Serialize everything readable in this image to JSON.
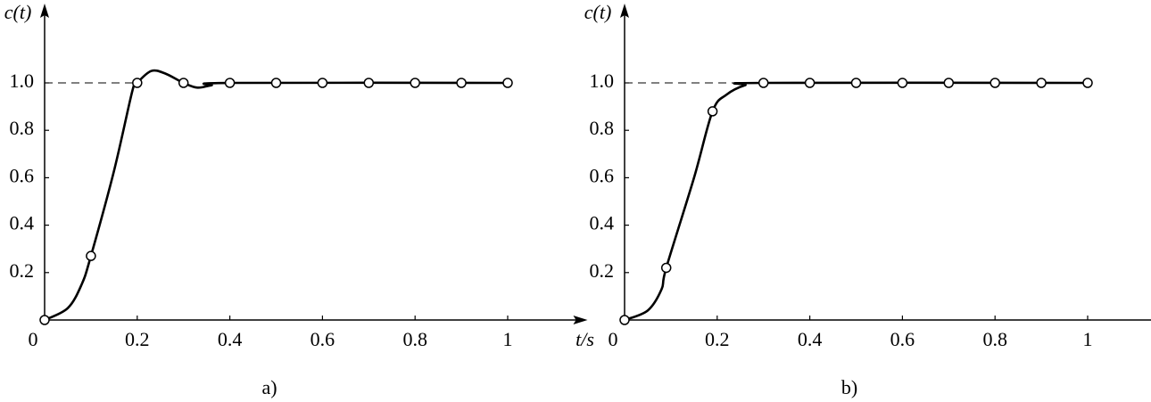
{
  "chart_data": [
    {
      "type": "line",
      "caption": "a)",
      "y_label": "c(t)",
      "x_label": "t/s",
      "xlim": [
        0,
        1.08
      ],
      "ylim": [
        0,
        1.3
      ],
      "xticks": [
        0,
        0.2,
        0.4,
        0.6,
        0.8,
        1
      ],
      "yticks": [
        0.2,
        0.4,
        0.6,
        0.8,
        {
          "value": 1,
          "label": "1.0"
        }
      ],
      "reference_line": 1,
      "color": "#000000",
      "x": [
        0,
        0.05,
        0.08,
        0.1,
        0.15,
        0.19,
        0.2,
        0.23,
        0.26,
        0.3,
        0.33,
        0.36,
        0.4,
        1
      ],
      "values": [
        0,
        0.05,
        0.15,
        0.27,
        0.63,
        0.97,
        1,
        1.05,
        1.04,
        1,
        0.98,
        0.99,
        1,
        1
      ],
      "markers": {
        "x": [
          0,
          0.1,
          0.2,
          0.3,
          0.4,
          0.5,
          0.6,
          0.7,
          0.8,
          0.9,
          1
        ],
        "values": [
          0,
          0.27,
          1,
          1,
          1,
          1,
          1,
          1,
          1,
          1,
          1
        ]
      }
    },
    {
      "type": "line",
      "caption": "b)",
      "y_label": "c(t)",
      "x_label": "t/s",
      "xlim": [
        0,
        1.08
      ],
      "ylim": [
        0,
        1.3
      ],
      "xticks": [
        0,
        0.2,
        0.4,
        0.6,
        0.8,
        1
      ],
      "yticks": [
        0.2,
        0.4,
        0.6,
        0.8,
        {
          "value": 1,
          "label": "1.0"
        }
      ],
      "reference_line": 1,
      "color": "#000000",
      "x": [
        0,
        0.05,
        0.08,
        0.09,
        0.15,
        0.19,
        0.22,
        0.26,
        0.3,
        1
      ],
      "values": [
        0,
        0.04,
        0.13,
        0.22,
        0.6,
        0.88,
        0.95,
        0.99,
        1,
        1
      ],
      "markers": {
        "x": [
          0,
          0.09,
          0.19,
          0.3,
          0.4,
          0.5,
          0.6,
          0.7,
          0.8,
          0.9,
          1
        ],
        "values": [
          0,
          0.22,
          0.88,
          1,
          1,
          1,
          1,
          1,
          1,
          1,
          1
        ]
      }
    }
  ]
}
